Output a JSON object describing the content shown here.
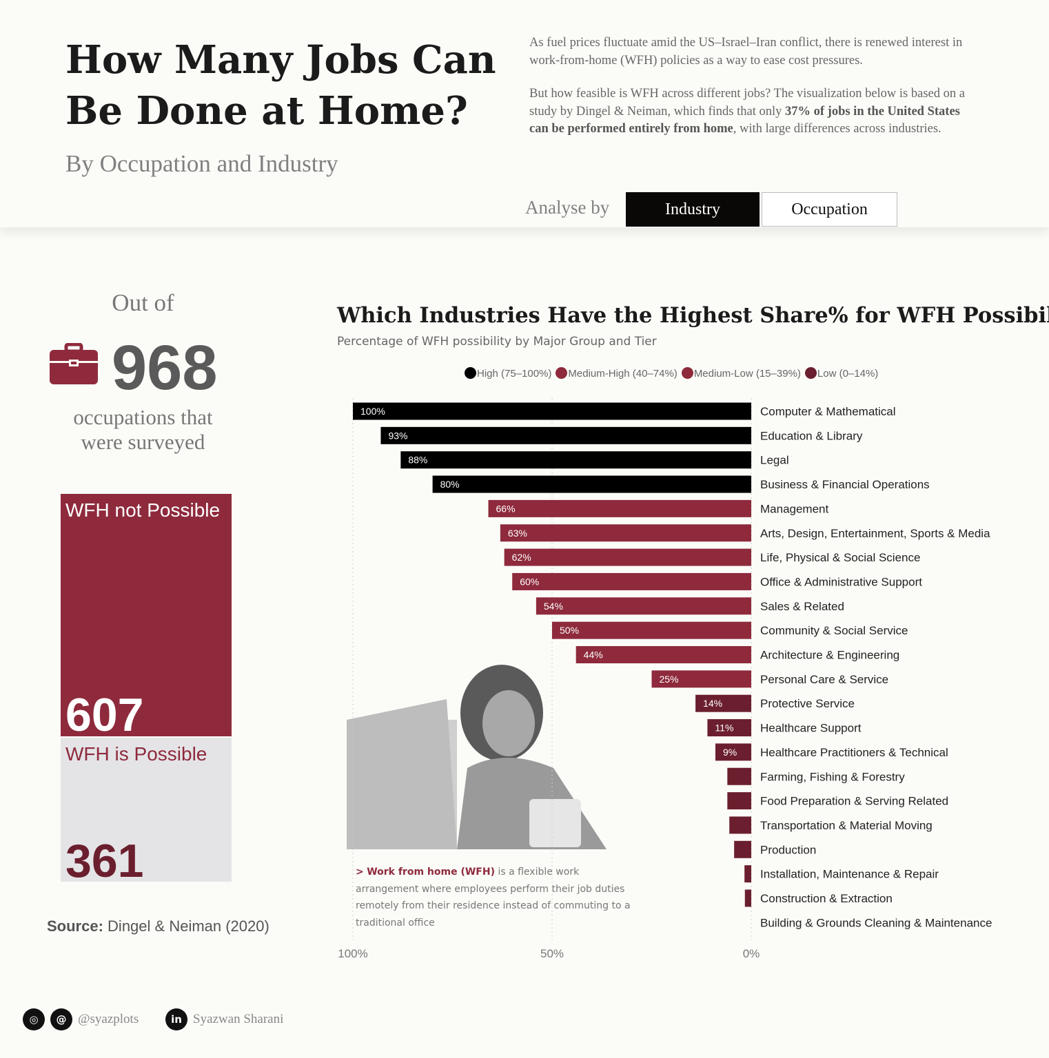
{
  "header": {
    "title": "How Many Jobs Can Be Done at Home?",
    "subtitle": "By Occupation and Industry",
    "intro_p1": "As fuel prices fluctuate amid the US–Israel–Iran conflict, there is renewed interest in work-from-home (WFH) policies as a way to ease cost pressures.",
    "intro_p2a": "But how feasible is WFH across different jobs? The visualization below is based on a study by Dingel & Neiman, which finds that only ",
    "intro_p2b": "37% of jobs in the United States can be performed entirely from home",
    "intro_p2c": ", with large differences across industries.",
    "analyse_label": "Analyse by",
    "toggle": [
      {
        "label": "Industry",
        "active": true
      },
      {
        "label": "Occupation",
        "active": false
      }
    ]
  },
  "summary": {
    "out_of": "Out of",
    "total": "968",
    "desc1": "occupations that",
    "desc2": "were surveyed",
    "not_possible_label": "WFH not Possible",
    "not_possible": "607",
    "possible_label": "WFH is Possible",
    "possible": "361",
    "source_label": "Source:",
    "source": "Dingel & Neiman (2020)"
  },
  "note": {
    "prefix": ">",
    "bold": "Work from home (WFH)",
    "text": " is a flexible work arrangement where employees perform their job duties remotely from their residence instead of commuting to a traditional office"
  },
  "footer": {
    "handle": "@syazplots",
    "name": "Syazwan Sharani"
  },
  "colors": {
    "High": "#000000",
    "Medium-High": "#8e2a3c",
    "Medium-Low": "#8e2a3c",
    "Low": "#6b1f2e"
  },
  "chart_data": {
    "type": "bar",
    "orientation": "horizontal",
    "title": "Which Industries Have the Highest Share% for WFH Possibility?",
    "subtitle": "Percentage of WFH possibility by Major Group and Tier",
    "legend": [
      {
        "name": "High (75–100%)",
        "tier": "High"
      },
      {
        "name": "Medium-High (40–74%)",
        "tier": "Medium-High"
      },
      {
        "name": "Medium-Low (15–39%)",
        "tier": "Medium-Low"
      },
      {
        "name": "Low (0–14%)",
        "tier": "Low"
      }
    ],
    "x_ticks": [
      "100%",
      "50%",
      "0%"
    ],
    "xlim": [
      100,
      0
    ],
    "categories": [
      "Computer & Mathematical",
      "Education & Library",
      "Legal",
      "Business & Financial Operations",
      "Management",
      "Arts, Design, Entertainment, Sports & Media",
      "Life, Physical & Social Science",
      "Office & Administrative Support",
      "Sales & Related",
      "Community & Social Service",
      "Architecture & Engineering",
      "Personal Care & Service",
      "Protective Service",
      "Healthcare Support",
      "Healthcare Practitioners & Technical",
      "Farming, Fishing & Forestry",
      "Food Preparation & Serving Related",
      "Transportation & Material Moving",
      "Production",
      "Installation, Maintenance & Repair",
      "Construction & Extraction",
      "Building & Grounds Cleaning & Maintenance"
    ],
    "values": [
      100,
      93,
      88,
      80,
      66,
      63,
      62,
      60,
      54,
      50,
      44,
      25,
      14,
      11,
      9,
      6,
      6,
      5.5,
      4.3,
      1.7,
      1.6,
      0
    ],
    "labels": [
      "100%",
      "93%",
      "88%",
      "80%",
      "66%",
      "63%",
      "62%",
      "60%",
      "54%",
      "50%",
      "44%",
      "25%",
      "14%",
      "11%",
      "9%",
      "",
      "",
      "",
      "",
      "",
      "",
      ""
    ],
    "tiers": [
      "High",
      "High",
      "High",
      "High",
      "Medium-High",
      "Medium-High",
      "Medium-High",
      "Medium-High",
      "Medium-High",
      "Medium-High",
      "Medium-High",
      "Medium-Low",
      "Low",
      "Low",
      "Low",
      "Low",
      "Low",
      "Low",
      "Low",
      "Low",
      "Low",
      "Low"
    ]
  }
}
